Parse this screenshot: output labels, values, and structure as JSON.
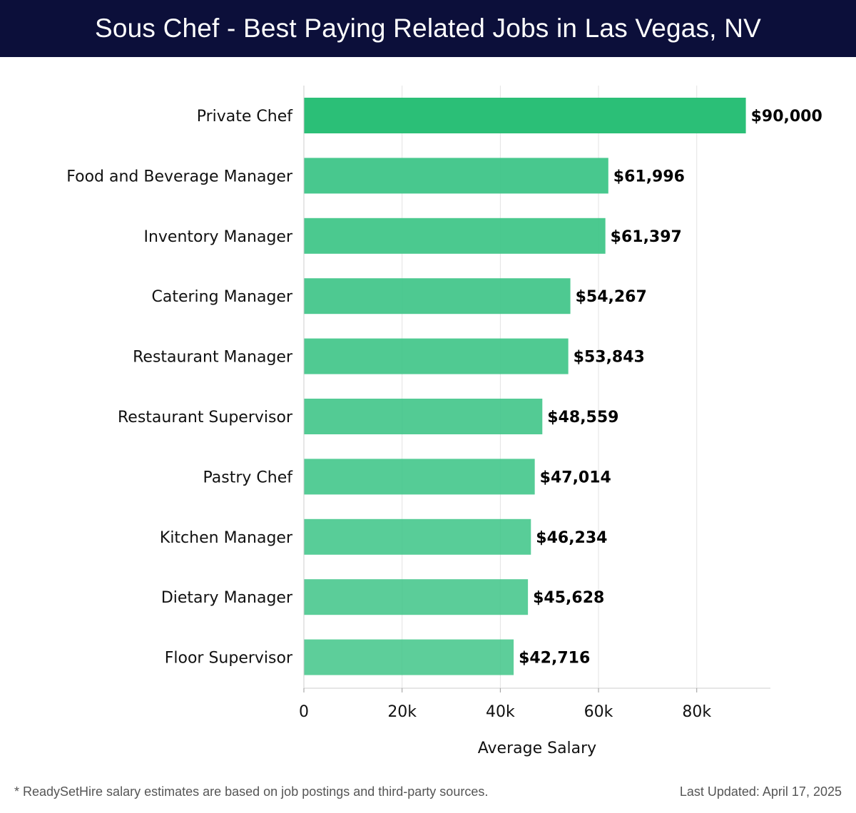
{
  "header": {
    "title": "Sous Chef - Best Paying Related Jobs in Las Vegas, NV"
  },
  "chart_data": {
    "type": "bar",
    "orientation": "horizontal",
    "title": "Sous Chef - Best Paying Related Jobs in Las Vegas, NV",
    "xlabel": "Average Salary",
    "ylabel": "",
    "xlim": [
      0,
      95000
    ],
    "xticks": [
      0,
      20000,
      40000,
      60000,
      80000
    ],
    "xtick_labels": [
      "0",
      "20k",
      "40k",
      "60k",
      "80k"
    ],
    "grid": true,
    "categories": [
      "Private Chef",
      "Food and Beverage Manager",
      "Inventory Manager",
      "Catering Manager",
      "Restaurant Manager",
      "Restaurant Supervisor",
      "Pastry Chef",
      "Kitchen Manager",
      "Dietary Manager",
      "Floor Supervisor"
    ],
    "values": [
      90000,
      61996,
      61397,
      54267,
      53843,
      48559,
      47014,
      46234,
      45628,
      42716
    ],
    "value_labels": [
      "$90,000",
      "$61,996",
      "$61,397",
      "$54,267",
      "$53,843",
      "$48,559",
      "$47,014",
      "$46,234",
      "$45,628",
      "$42,716"
    ],
    "colors": {
      "highlight": "#2bbf77",
      "bar_base": "#3cc486",
      "bar_light": "#5bd197",
      "grid": "#e3e3e3",
      "axis": "#cccccc"
    }
  },
  "footer": {
    "note": "* ReadySetHire salary estimates are based on job postings and third-party sources.",
    "updated": "Last Updated: April 17, 2025"
  }
}
